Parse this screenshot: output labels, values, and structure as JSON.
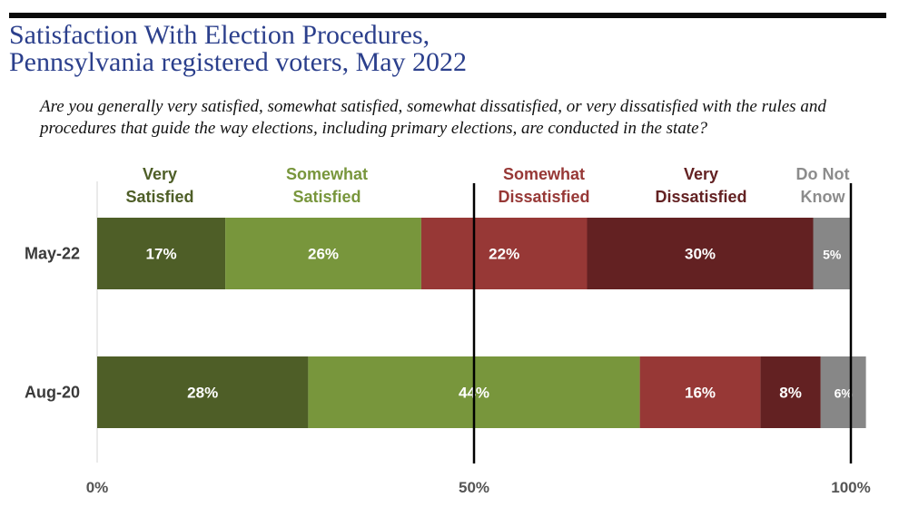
{
  "title": "Satisfaction With Election Procedures,\nPennsylvania registered voters, May 2022",
  "question": "Are you generally very satisfied, somewhat satisfied, somewhat dissatisfied, or very dissatisfied with the rules and procedures that guide the way elections, including primary elections, are conducted in the state?",
  "chart_data": {
    "type": "bar",
    "orientation": "horizontal",
    "stacked": true,
    "categories": [
      "May-22",
      "Aug-20"
    ],
    "series": [
      {
        "name": "Very\nSatisfied",
        "color": "#4e5e27",
        "label_color": "#4e5e27",
        "values": [
          17,
          28
        ],
        "labels": [
          "17%",
          "28%"
        ]
      },
      {
        "name": "Somewhat\nSatisfied",
        "color": "#78963c",
        "label_color": "#78963c",
        "values": [
          26,
          44
        ],
        "labels": [
          "26%",
          "44%"
        ]
      },
      {
        "name": "Somewhat\nDissatisfied",
        "color": "#973836",
        "label_color": "#973836",
        "values": [
          22,
          16
        ],
        "labels": [
          "22%",
          "16%"
        ]
      },
      {
        "name": "Very\nDissatisfied",
        "color": "#632122",
        "label_color": "#632122",
        "values": [
          30,
          8
        ],
        "labels": [
          "30%",
          "8%"
        ]
      },
      {
        "name": "Do Not\nKnow",
        "color": "#878787",
        "label_color": "#8c8c8c",
        "values": [
          5,
          6
        ],
        "labels": [
          "5%",
          "6%"
        ]
      }
    ],
    "xlim": [
      0,
      100
    ],
    "x_ticks": [
      0,
      50,
      100
    ],
    "x_tick_labels": [
      "0%",
      "50%",
      "100%"
    ],
    "reference_lines": [
      50,
      100
    ],
    "legend_placement": "top"
  }
}
